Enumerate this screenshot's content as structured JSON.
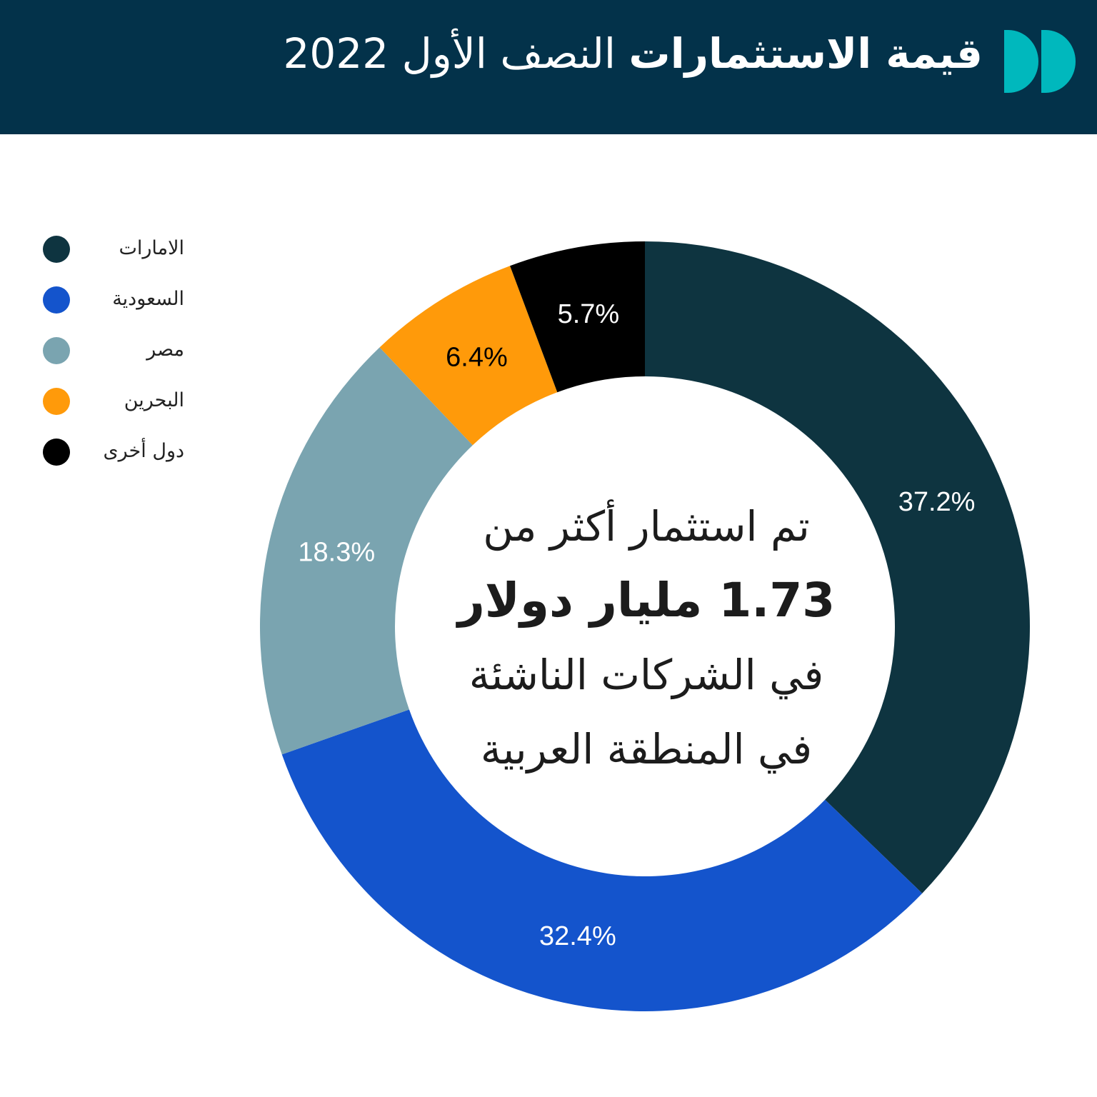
{
  "header": {
    "title_bold": "قيمة الاستثمارات",
    "title_light": "النصف الأول 2022",
    "background": "#03324a",
    "logo_color": "#00b8bd"
  },
  "chart_data": {
    "type": "pie",
    "variant": "donut",
    "categories": [
      "الامارات",
      "السعودية",
      "مصر",
      "البحرين",
      "دول أخرى"
    ],
    "values": [
      37.2,
      32.4,
      18.3,
      6.4,
      5.7
    ],
    "labels": [
      "37.2%",
      "32.4%",
      "18.3%",
      "6.4%",
      "5.7%"
    ],
    "colors": [
      "#0e3440",
      "#1454cc",
      "#7aa4b0",
      "#ff9a0a",
      "#000000"
    ],
    "label_colors": [
      "#ffffff",
      "#ffffff",
      "#ffffff",
      "#000000",
      "#ffffff"
    ],
    "legend_position": "top-left",
    "start": "top",
    "direction": "clockwise"
  },
  "center_text": {
    "line1": "تم استثمار أكثر من",
    "line2": "1.73 مليار دولار",
    "line3": "في الشركات الناشئة",
    "line4": "في المنطقة العربية"
  }
}
